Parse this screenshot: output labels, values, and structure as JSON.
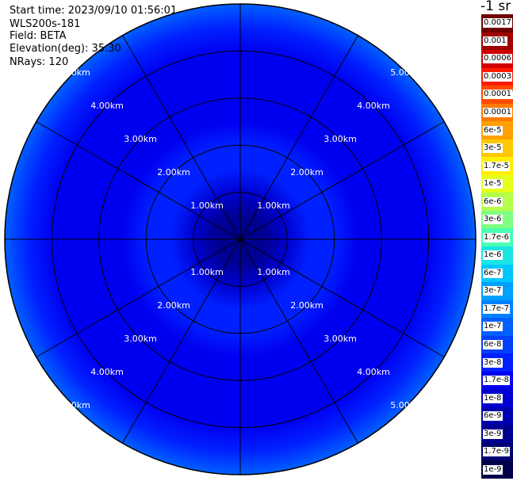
{
  "info": {
    "start_time": "Start time: 2023/09/10 01:56:01",
    "instrument": "WLS200s-181",
    "field": "Field: BETA",
    "elevation": "Elevation(deg): 35.30",
    "nrays": "NRays: 120"
  },
  "colorbar": {
    "unit": "-1 sr",
    "labels": [
      "0.0017",
      "0.001",
      "0.0006",
      "0.0003",
      "0.00017",
      "0.0001",
      "6e-5",
      "3e-5",
      "1.7e-5",
      "1e-5",
      "6e-6",
      "3e-6",
      "1.7e-6",
      "1e-6",
      "6e-7",
      "3e-7",
      "1.7e-7",
      "1e-7",
      "6e-8",
      "3e-8",
      "1.7e-8",
      "1e-8",
      "6e-9",
      "3e-9",
      "1.7e-9",
      "1e-9"
    ],
    "colors": [
      "#6e0000",
      "#a00000",
      "#d00000",
      "#ff1a00",
      "#ff4a00",
      "#ff7a00",
      "#ffa000",
      "#ffc800",
      "#fff000",
      "#e6ff1a",
      "#b4ff4a",
      "#80ff80",
      "#4affb4",
      "#1ae6e6",
      "#00c8ff",
      "#00a0ff",
      "#0080ff",
      "#0060ff",
      "#0040ff",
      "#0020ff",
      "#0000f0",
      "#0000d0",
      "#0000b0",
      "#000090",
      "#000070",
      "#00004a"
    ]
  },
  "chart_data": {
    "type": "heatmap",
    "projection": "polar PPI",
    "field": "BETA",
    "range_rings_km": [
      1.0,
      2.0,
      3.0,
      4.0,
      5.0
    ],
    "ring_labels": [
      "1.00km",
      "2.00km",
      "3.00km",
      "4.00km",
      "5.00km"
    ],
    "spokes_deg": [
      0,
      30,
      60,
      90,
      120,
      150,
      180,
      210,
      240,
      270,
      300,
      330
    ],
    "max_range_km": 5.0,
    "nrays": 120,
    "value_scale": "log",
    "range_profile": [
      {
        "range_km": 0.0,
        "value": 3e-09
      },
      {
        "range_km": 0.5,
        "value": 3e-09
      },
      {
        "range_km": 1.0,
        "value": 1e-08
      },
      {
        "range_km": 1.5,
        "value": 3e-08
      },
      {
        "range_km": 2.0,
        "value": 3e-08
      },
      {
        "range_km": 2.5,
        "value": 1.7e-08
      },
      {
        "range_km": 3.0,
        "value": 1.7e-08
      },
      {
        "range_km": 3.5,
        "value": 1.7e-08
      },
      {
        "range_km": 4.0,
        "value": 1.7e-08
      },
      {
        "range_km": 4.5,
        "value": 3e-08
      },
      {
        "range_km": 5.0,
        "value": 1e-07
      }
    ]
  }
}
